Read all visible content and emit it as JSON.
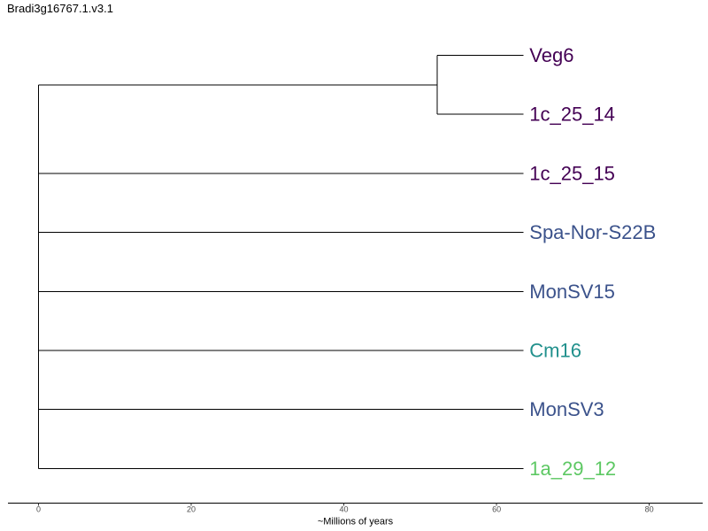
{
  "title": "Bradi3g16767.1.v3.1",
  "chart_data": {
    "type": "dendrogram",
    "xlabel": "~Millions of years",
    "xlim": [
      -4,
      87
    ],
    "x_ticks": [
      0,
      20,
      40,
      60,
      80
    ],
    "tip_x": 63.5,
    "leaves": [
      {
        "label": "Veg6",
        "color": "#440154"
      },
      {
        "label": "1c_25_14",
        "color": "#440154"
      },
      {
        "label": "1c_25_15",
        "color": "#440154"
      },
      {
        "label": "Spa-Nor-S22B",
        "color": "#3b528b"
      },
      {
        "label": "MonSV15",
        "color": "#3b528b"
      },
      {
        "label": "Cm16",
        "color": "#21908c"
      },
      {
        "label": "MonSV3",
        "color": "#3b528b"
      },
      {
        "label": "1a_29_12",
        "color": "#5dc863"
      }
    ],
    "root_x": 0,
    "clades": [
      {
        "members": [
          "Veg6",
          "1c_25_14"
        ],
        "node_x": 52.2
      }
    ]
  }
}
